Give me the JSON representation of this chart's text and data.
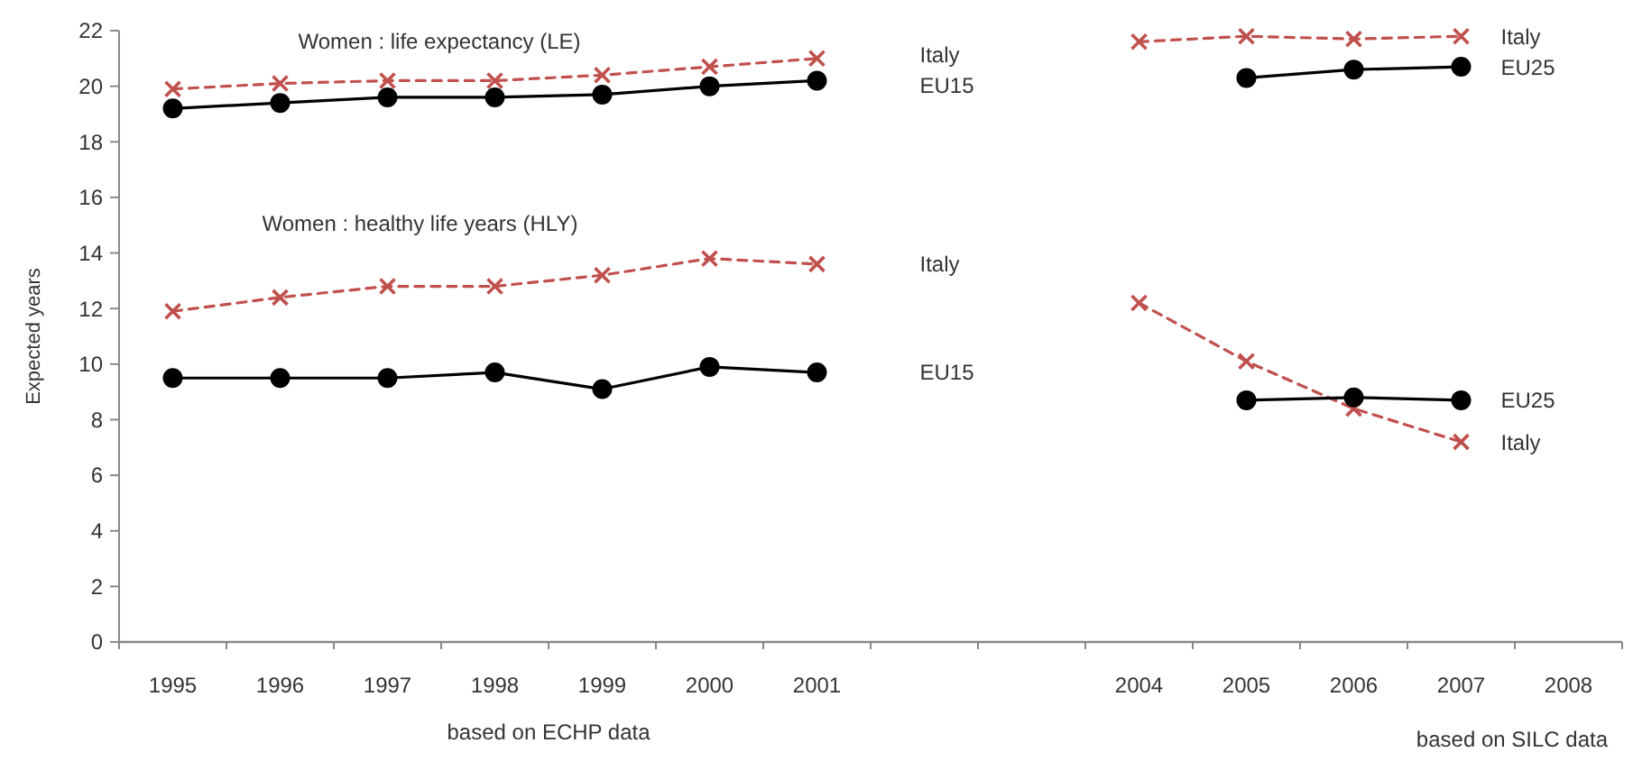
{
  "chart_data": {
    "type": "line",
    "ylabel": "Expected years",
    "categories": [
      "1995",
      "1996",
      "1997",
      "1998",
      "1999",
      "2000",
      "2001",
      null,
      null,
      "2004",
      "2005",
      "2006",
      "2007",
      "2008"
    ],
    "ylim": [
      0,
      22
    ],
    "yticks": [
      0,
      2,
      4,
      6,
      8,
      10,
      12,
      14,
      16,
      18,
      20,
      22
    ],
    "grid": false,
    "annotations": [
      "Women : life expectancy (LE)",
      "Women : healthy life years (HLY)",
      "based on ECHP data",
      "based on SILC data"
    ],
    "series": [
      {
        "name": "Italy",
        "color": "#c0504d",
        "line_style": "dashed",
        "marker": "cross",
        "values": [
          19.9,
          20.1,
          20.2,
          20.2,
          20.4,
          20.7,
          21.0,
          null,
          null,
          21.6,
          21.8,
          21.7,
          21.8,
          null
        ]
      },
      {
        "name": "EU15",
        "color": "#000000",
        "line_style": "solid",
        "marker": "circle",
        "values": [
          19.2,
          19.4,
          19.6,
          19.6,
          19.7,
          20.0,
          20.2,
          null,
          null,
          null,
          null,
          null,
          null,
          null
        ]
      },
      {
        "name": "EU25",
        "color": "#000000",
        "line_style": "solid",
        "marker": "circle",
        "values": [
          null,
          null,
          null,
          null,
          null,
          null,
          null,
          null,
          null,
          null,
          20.3,
          20.6,
          20.7,
          null
        ]
      },
      {
        "name": "Italy",
        "color": "#c0504d",
        "line_style": "dashed",
        "marker": "cross",
        "values": [
          11.9,
          12.4,
          12.8,
          12.8,
          13.2,
          13.8,
          13.6,
          null,
          null,
          12.2,
          10.1,
          8.4,
          7.2,
          null
        ]
      },
      {
        "name": "EU15",
        "color": "#000000",
        "line_style": "solid",
        "marker": "circle",
        "values": [
          9.5,
          9.5,
          9.5,
          9.7,
          9.1,
          9.9,
          9.7,
          null,
          null,
          null,
          null,
          null,
          null,
          null
        ]
      },
      {
        "name": "EU25",
        "color": "#000000",
        "line_style": "solid",
        "marker": "circle",
        "values": [
          null,
          null,
          null,
          null,
          null,
          null,
          null,
          null,
          null,
          null,
          8.7,
          8.8,
          8.7,
          null
        ]
      }
    ]
  }
}
